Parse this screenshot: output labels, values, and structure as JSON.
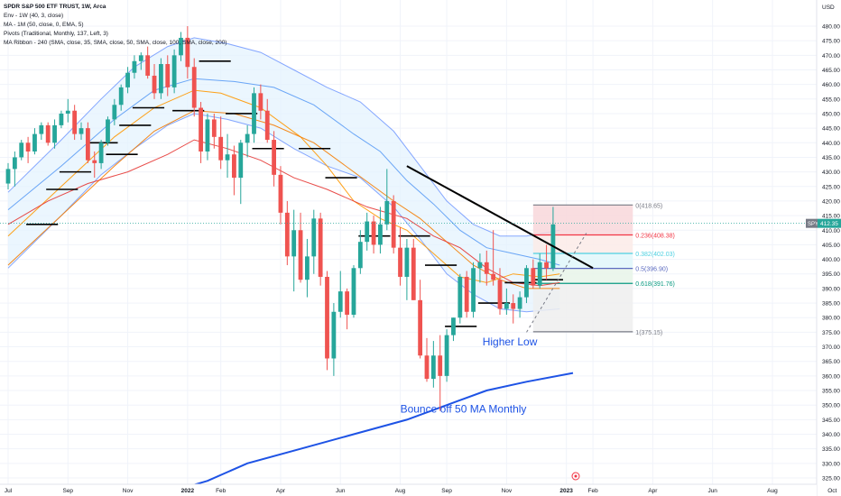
{
  "header": {
    "title": "SPDR S&P 500 ETF TRUST, 1W, Arca",
    "indicators": [
      "Env - 1W (40, 3, close)",
      "MA - 1M (50, close, 0, EMA, 5)",
      "Pivots (Traditional, Monthly, 137, Left, 3)",
      "MA Ribbon - 240 (SMA, close, 35, SMA, close, 50, SMA, close, 100, SMA, close, 200)"
    ]
  },
  "colors": {
    "up": "#26a69a",
    "down": "#ef5350",
    "envelope_fill": "#e3f2fd",
    "envelope_line": "#2962ff",
    "ma_monthly": "#1e53e5",
    "trendline": "#000000"
  },
  "chart_data": {
    "type": "candlestick",
    "currency": "USD",
    "last_price_tag": {
      "symbol": "SPY",
      "value": "412.35"
    },
    "y_axis": {
      "ylim": [
        320,
        483
      ],
      "ticks": [
        "480.00",
        "475.00",
        "470.00",
        "465.00",
        "460.00",
        "455.00",
        "450.00",
        "445.00",
        "440.00",
        "435.00",
        "430.00",
        "425.00",
        "420.00",
        "415.00",
        "410.00",
        "405.00",
        "400.00",
        "395.00",
        "390.00",
        "385.00",
        "380.00",
        "375.00",
        "370.00",
        "365.00",
        "360.00",
        "355.00",
        "350.00",
        "345.00",
        "340.00",
        "335.00",
        "330.00",
        "325.00"
      ]
    },
    "x_axis": {
      "start": "2021-07-02",
      "labels": [
        "Jul",
        "Sep",
        "Nov",
        "2022",
        "Feb",
        "Apr",
        "Jun",
        "Aug",
        "Sep",
        "Nov",
        "2023",
        "Feb",
        "Apr",
        "Jun",
        "Aug",
        "Oct"
      ],
      "label_weeks": [
        0,
        9,
        18,
        27,
        32,
        41,
        50,
        59,
        66,
        75,
        84,
        88,
        97,
        106,
        115,
        124
      ],
      "bold_labels": [
        "2022",
        "2023"
      ]
    },
    "candles": [
      [
        426,
        433,
        424,
        431
      ],
      [
        431,
        437,
        425,
        435
      ],
      [
        435,
        441,
        434,
        440
      ],
      [
        440,
        442,
        433,
        437
      ],
      [
        437,
        445,
        436,
        443
      ],
      [
        443,
        447,
        441,
        446
      ],
      [
        446,
        447,
        439,
        440
      ],
      [
        440,
        448,
        438,
        446
      ],
      [
        446,
        451,
        445,
        450
      ],
      [
        450,
        455,
        447,
        451
      ],
      [
        451,
        453,
        441,
        443
      ],
      [
        443,
        447,
        441,
        445
      ],
      [
        445,
        447,
        433,
        434
      ],
      [
        434,
        437,
        428,
        433
      ],
      [
        433,
        441,
        431,
        440
      ],
      [
        440,
        449,
        439,
        448
      ],
      [
        448,
        455,
        446,
        453
      ],
      [
        453,
        460,
        451,
        459
      ],
      [
        459,
        466,
        457,
        464
      ],
      [
        464,
        470,
        462,
        468
      ],
      [
        468,
        471,
        465,
        470
      ],
      [
        470,
        473,
        462,
        463
      ],
      [
        463,
        467,
        455,
        457
      ],
      [
        457,
        469,
        455,
        467
      ],
      [
        467,
        470,
        456,
        459
      ],
      [
        459,
        472,
        457,
        470
      ],
      [
        470,
        478,
        468,
        476
      ],
      [
        476,
        480,
        462,
        466
      ],
      [
        466,
        469,
        449,
        452
      ],
      [
        452,
        454,
        433,
        437
      ],
      [
        437,
        450,
        434,
        448
      ],
      [
        448,
        450,
        438,
        442
      ],
      [
        442,
        449,
        431,
        434
      ],
      [
        434,
        443,
        428,
        436
      ],
      [
        436,
        439,
        422,
        428
      ],
      [
        428,
        441,
        419,
        440
      ],
      [
        440,
        446,
        435,
        443
      ],
      [
        443,
        459,
        440,
        457
      ],
      [
        457,
        460,
        448,
        451
      ],
      [
        451,
        455,
        440,
        441
      ],
      [
        441,
        444,
        425,
        429
      ],
      [
        429,
        432,
        412,
        416
      ],
      [
        416,
        420,
        398,
        401
      ],
      [
        401,
        417,
        389,
        410
      ],
      [
        410,
        416,
        392,
        393
      ],
      [
        393,
        407,
        387,
        401
      ],
      [
        401,
        417,
        395,
        414
      ],
      [
        414,
        416,
        391,
        394
      ],
      [
        394,
        396,
        362,
        366
      ],
      [
        366,
        385,
        360,
        382
      ],
      [
        382,
        396,
        380,
        389
      ],
      [
        389,
        390,
        376,
        381
      ],
      [
        381,
        398,
        380,
        397
      ],
      [
        397,
        410,
        395,
        406
      ],
      [
        406,
        416,
        403,
        413
      ],
      [
        413,
        415,
        402,
        405
      ],
      [
        405,
        418,
        402,
        412
      ],
      [
        412,
        431,
        410,
        420
      ],
      [
        420,
        422,
        402,
        404
      ],
      [
        404,
        411,
        391,
        394
      ],
      [
        394,
        407,
        386,
        404
      ],
      [
        404,
        407,
        386,
        386
      ],
      [
        386,
        393,
        366,
        367
      ],
      [
        367,
        373,
        358,
        359
      ],
      [
        359,
        372,
        356,
        367
      ],
      [
        367,
        374,
        348,
        360
      ],
      [
        360,
        376,
        358,
        374
      ],
      [
        374,
        380,
        372,
        380
      ],
      [
        380,
        395,
        378,
        394
      ],
      [
        394,
        396,
        380,
        382
      ],
      [
        382,
        399,
        380,
        397
      ],
      [
        397,
        402,
        392,
        399
      ],
      [
        399,
        403,
        391,
        395
      ],
      [
        395,
        410,
        391,
        393
      ],
      [
        393,
        397,
        381,
        383
      ],
      [
        383,
        390,
        381,
        385
      ],
      [
        385,
        388,
        378,
        383
      ],
      [
        383,
        389,
        380,
        387
      ],
      [
        387,
        398,
        385,
        397
      ],
      [
        397,
        400,
        390,
        391
      ],
      [
        391,
        402,
        390,
        399
      ],
      [
        399,
        405,
        393,
        397
      ],
      [
        397,
        418,
        396,
        412
      ]
    ],
    "envelope": {
      "upper": [
        [
          0,
          423
        ],
        [
          8,
          441
        ],
        [
          14,
          455
        ],
        [
          19,
          466
        ],
        [
          24,
          473
        ],
        [
          28,
          476
        ],
        [
          33,
          474
        ],
        [
          38,
          471
        ],
        [
          43,
          465
        ],
        [
          48,
          459
        ],
        [
          53,
          454
        ],
        [
          58,
          444
        ],
        [
          62,
          432
        ],
        [
          66,
          420
        ],
        [
          70,
          412
        ],
        [
          74,
          408
        ],
        [
          78,
          408
        ],
        [
          83,
          410
        ]
      ],
      "lower": [
        [
          0,
          397
        ],
        [
          8,
          415
        ],
        [
          14,
          429
        ],
        [
          19,
          438
        ],
        [
          24,
          446
        ],
        [
          28,
          450
        ],
        [
          33,
          448
        ],
        [
          38,
          445
        ],
        [
          43,
          438
        ],
        [
          48,
          432
        ],
        [
          53,
          428
        ],
        [
          58,
          418
        ],
        [
          62,
          407
        ],
        [
          66,
          395
        ],
        [
          70,
          388
        ],
        [
          74,
          383
        ],
        [
          78,
          382
        ],
        [
          83,
          383
        ]
      ]
    },
    "ma_ribbon": [
      [
        [
          0,
          408
        ],
        [
          8,
          425
        ],
        [
          16,
          442
        ],
        [
          22,
          452
        ],
        [
          28,
          458
        ],
        [
          32,
          457
        ],
        [
          38,
          452
        ],
        [
          44,
          442
        ],
        [
          48,
          432
        ],
        [
          52,
          420
        ],
        [
          56,
          414
        ],
        [
          60,
          410
        ],
        [
          64,
          402
        ],
        [
          68,
          394
        ],
        [
          72,
          392
        ],
        [
          76,
          395
        ],
        [
          80,
          394
        ],
        [
          83,
          395
        ]
      ],
      [
        [
          0,
          398
        ],
        [
          8,
          415
        ],
        [
          16,
          432
        ],
        [
          22,
          444
        ],
        [
          28,
          451
        ],
        [
          34,
          450
        ],
        [
          40,
          446
        ],
        [
          46,
          440
        ],
        [
          52,
          430
        ],
        [
          58,
          420
        ],
        [
          62,
          414
        ],
        [
          66,
          406
        ],
        [
          70,
          398
        ],
        [
          74,
          393
        ],
        [
          78,
          390
        ],
        [
          83,
          390
        ]
      ],
      [
        [
          0,
          417
        ],
        [
          8,
          432
        ],
        [
          16,
          448
        ],
        [
          22,
          458
        ],
        [
          28,
          462
        ],
        [
          34,
          461
        ],
        [
          40,
          459
        ],
        [
          46,
          453
        ],
        [
          52,
          443
        ],
        [
          56,
          437
        ],
        [
          60,
          427
        ],
        [
          64,
          419
        ],
        [
          68,
          410
        ],
        [
          72,
          404
        ],
        [
          76,
          402
        ],
        [
          80,
          400
        ],
        [
          83,
          398
        ]
      ],
      [
        [
          0,
          412
        ],
        [
          6,
          420
        ],
        [
          12,
          426
        ],
        [
          18,
          430
        ],
        [
          24,
          436
        ],
        [
          28,
          441
        ],
        [
          33,
          438
        ],
        [
          38,
          434
        ],
        [
          43,
          428
        ],
        [
          48,
          424
        ],
        [
          54,
          418
        ],
        [
          60,
          414
        ],
        [
          64,
          408
        ],
        [
          68,
          404
        ],
        [
          72,
          397
        ],
        [
          76,
          392
        ],
        [
          80,
          391
        ],
        [
          83,
          392
        ]
      ]
    ],
    "ma_monthly": [
      [
        27,
        322
      ],
      [
        30,
        324
      ],
      [
        36,
        330
      ],
      [
        44,
        335
      ],
      [
        52,
        340
      ],
      [
        60,
        345
      ],
      [
        66,
        350
      ],
      [
        72,
        355
      ],
      [
        78,
        358
      ],
      [
        85,
        361
      ]
    ],
    "pivots": [
      [
        3,
        412
      ],
      [
        6,
        424
      ],
      [
        8,
        430
      ],
      [
        12,
        440
      ],
      [
        15,
        436
      ],
      [
        17,
        446
      ],
      [
        19,
        452
      ],
      [
        25,
        451
      ],
      [
        29,
        468
      ],
      [
        33,
        450
      ],
      [
        37,
        438
      ],
      [
        44,
        438
      ],
      [
        48,
        428
      ],
      [
        53,
        408
      ],
      [
        59,
        408
      ],
      [
        63,
        398
      ],
      [
        66,
        377
      ],
      [
        71,
        385
      ],
      [
        75,
        392
      ],
      [
        79,
        393
      ]
    ],
    "trendline": [
      [
        60,
        432
      ],
      [
        88,
        397
      ]
    ],
    "projection": [
      [
        78,
        375
      ],
      [
        87,
        409
      ]
    ],
    "fibonacci": {
      "x_range": [
        79,
        94
      ],
      "levels": [
        {
          "label": "0(418.65)",
          "value": 418.65,
          "color": "#787b86",
          "fill": "#f8d7da"
        },
        {
          "label": "0.236(408.38)",
          "value": 408.38,
          "color": "#f23645",
          "fill": "#fcebe7"
        },
        {
          "label": "0.382(402.03)",
          "value": 402.03,
          "color": "#4dd0e1",
          "fill": "#e0f7fa"
        },
        {
          "label": "0.5(396.90)",
          "value": 396.9,
          "color": "#5c6bc0",
          "fill": "#e8f5e9"
        },
        {
          "label": "0.618(391.76)",
          "value": 391.76,
          "color": "#089981",
          "fill": "#eeeeee"
        },
        {
          "label": "1(375.15)",
          "value": 375.15,
          "color": "#787b86",
          "fill": null
        }
      ]
    },
    "annotations": [
      {
        "text": "Higher Low",
        "week": 75.5,
        "value": 370.5
      },
      {
        "text": "Bounce off 50 MA Monthly",
        "week": 68.5,
        "value": 347.5
      }
    ]
  }
}
